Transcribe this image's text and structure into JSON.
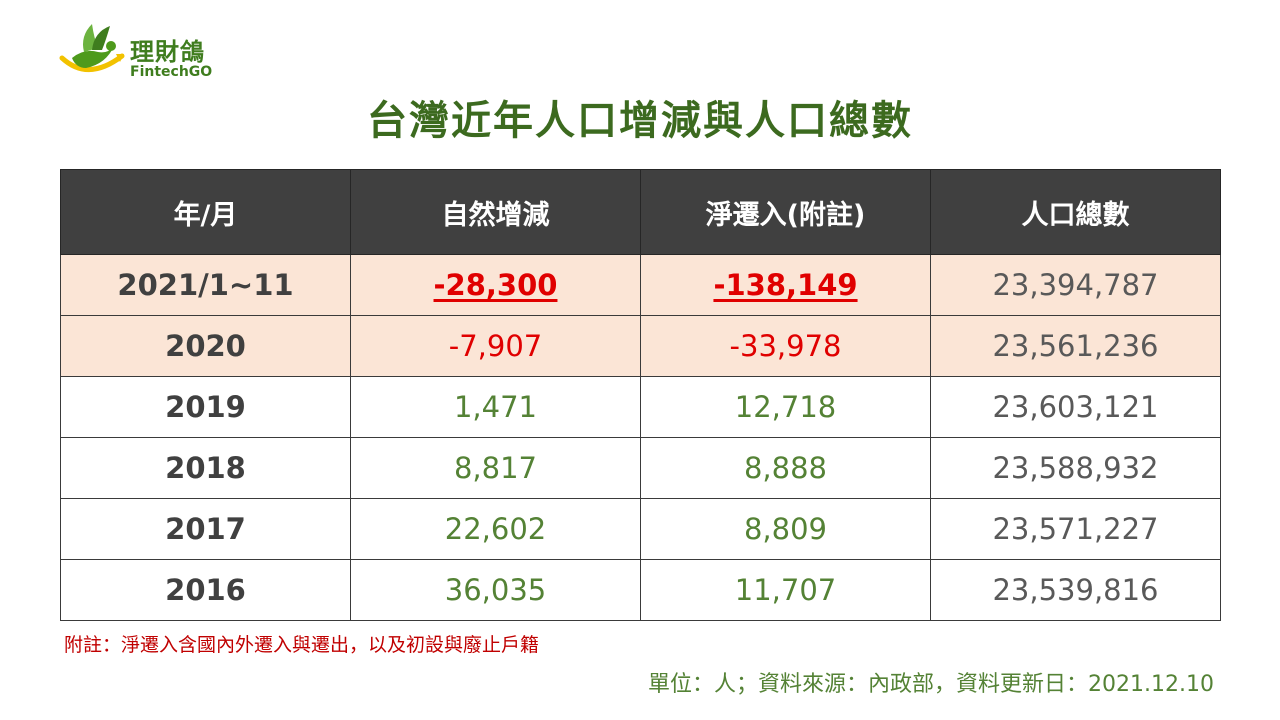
{
  "logo": {
    "name_cn": "理財鴿",
    "name_en": "FintechGO"
  },
  "title": "台灣近年人口增減與人口總數",
  "table": {
    "headers": [
      "年/月",
      "自然增減",
      "淨遷入(附註)",
      "人口總數"
    ],
    "rows": [
      {
        "period": "2021/1~11",
        "natural": "-28,300",
        "net_migration": "-138,149",
        "total": "23,394,787"
      },
      {
        "period": "2020",
        "natural": "-7,907",
        "net_migration": "-33,978",
        "total": "23,561,236"
      },
      {
        "period": "2019",
        "natural": "1,471",
        "net_migration": "12,718",
        "total": "23,603,121"
      },
      {
        "period": "2018",
        "natural": "8,817",
        "net_migration": "8,888",
        "total": "23,588,932"
      },
      {
        "period": "2017",
        "natural": "22,602",
        "net_migration": "8,809",
        "total": "23,571,227"
      },
      {
        "period": "2016",
        "natural": "36,035",
        "net_migration": "11,707",
        "total": "23,539,816"
      }
    ]
  },
  "footnote": "附註：淨遷入含國內外遷入與遷出，以及初設與廢止戶籍",
  "source": "單位：人；資料來源：內政部，資料更新日：2021.12.10",
  "colors": {
    "title_green": "#3c6a1f",
    "header_bg": "#404040",
    "highlight_row_bg": "#fbe5d6",
    "negative_red": "#e00000",
    "positive_green": "#548235"
  }
}
